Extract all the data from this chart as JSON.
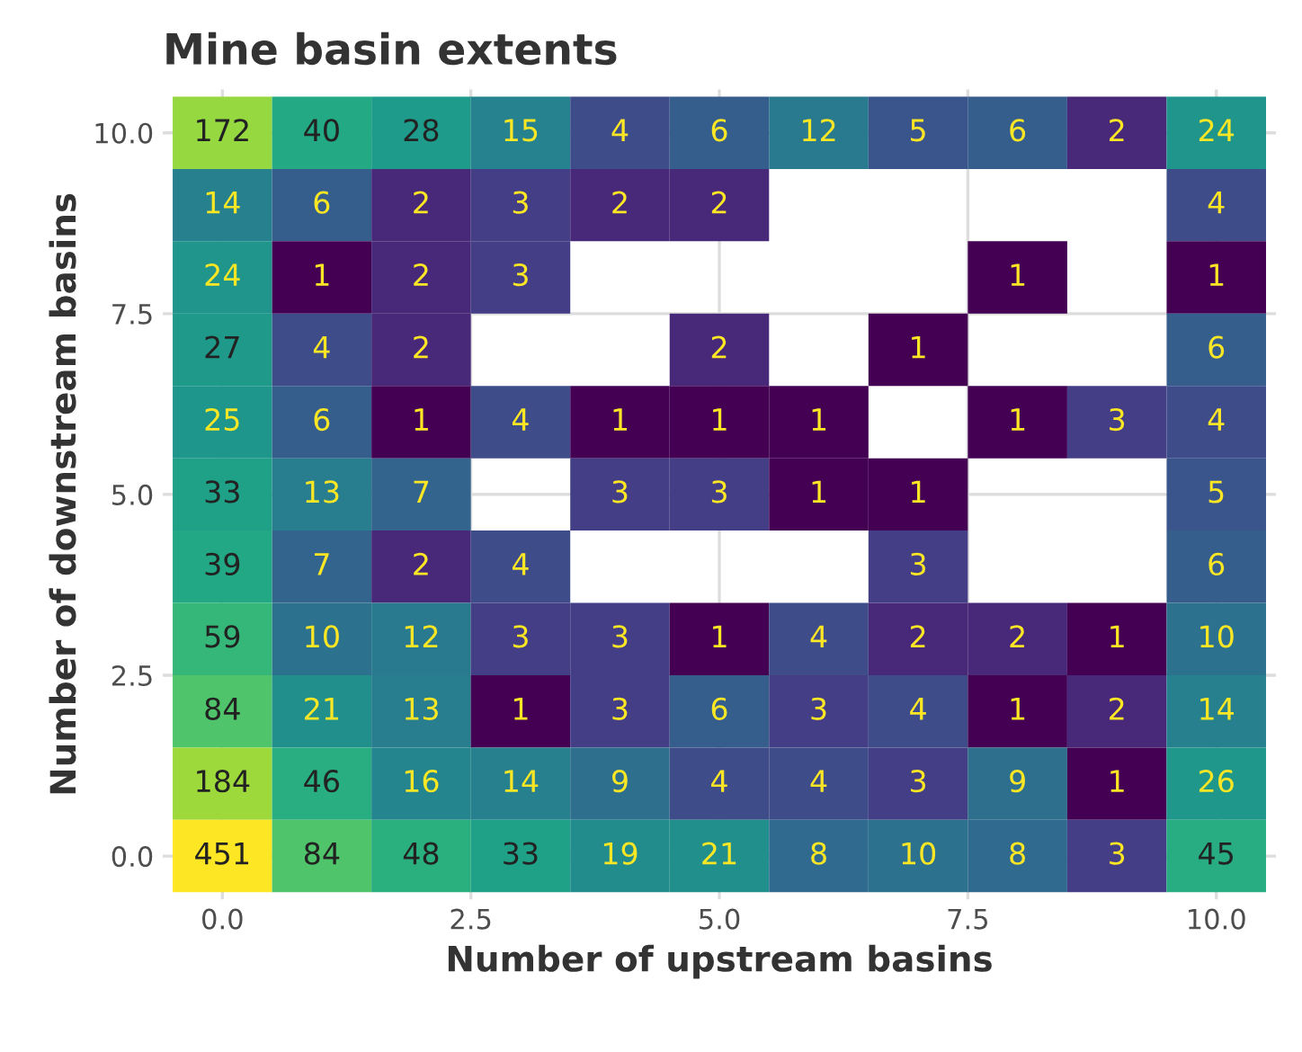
{
  "chart_data": {
    "type": "heatmap",
    "title": "Mine basin extents",
    "xlabel": "Number of upstream basins",
    "ylabel": "Number of downstream basins",
    "x": [
      0,
      1,
      2,
      3,
      4,
      5,
      6,
      7,
      8,
      9,
      10
    ],
    "y": [
      10,
      9,
      8,
      7,
      6,
      5,
      4,
      3,
      2,
      1,
      0
    ],
    "cells": [
      [
        172,
        40,
        28,
        15,
        4,
        6,
        12,
        5,
        6,
        2,
        24
      ],
      [
        14,
        6,
        2,
        3,
        2,
        2,
        null,
        null,
        null,
        null,
        4
      ],
      [
        24,
        1,
        2,
        3,
        null,
        null,
        null,
        null,
        1,
        null,
        1
      ],
      [
        27,
        4,
        2,
        null,
        null,
        2,
        null,
        1,
        null,
        null,
        6
      ],
      [
        25,
        6,
        1,
        4,
        1,
        1,
        1,
        null,
        1,
        3,
        4
      ],
      [
        33,
        13,
        7,
        null,
        3,
        3,
        1,
        1,
        null,
        null,
        5
      ],
      [
        39,
        7,
        2,
        4,
        null,
        null,
        null,
        3,
        null,
        null,
        6
      ],
      [
        59,
        10,
        12,
        3,
        3,
        1,
        4,
        2,
        2,
        1,
        10
      ],
      [
        84,
        21,
        13,
        1,
        3,
        6,
        3,
        4,
        1,
        2,
        14
      ],
      [
        184,
        46,
        16,
        14,
        9,
        4,
        4,
        3,
        9,
        1,
        26
      ],
      [
        451,
        84,
        48,
        33,
        19,
        21,
        8,
        10,
        8,
        3,
        45
      ]
    ],
    "data_labels": true,
    "xlim": [
      -0.6,
      10.6
    ],
    "ylim": [
      -0.6,
      10.6
    ],
    "xticks": [
      {
        "value": 0,
        "label": "0.0"
      },
      {
        "value": 2.5,
        "label": "2.5"
      },
      {
        "value": 5,
        "label": "5.0"
      },
      {
        "value": 7.5,
        "label": "7.5"
      },
      {
        "value": 10,
        "label": "10.0"
      }
    ],
    "yticks": [
      {
        "value": 0,
        "label": "0.0"
      },
      {
        "value": 2.5,
        "label": "2.5"
      },
      {
        "value": 5,
        "label": "5.0"
      },
      {
        "value": 7.5,
        "label": "7.5"
      },
      {
        "value": 10,
        "label": "10.0"
      }
    ],
    "grid": true
  }
}
